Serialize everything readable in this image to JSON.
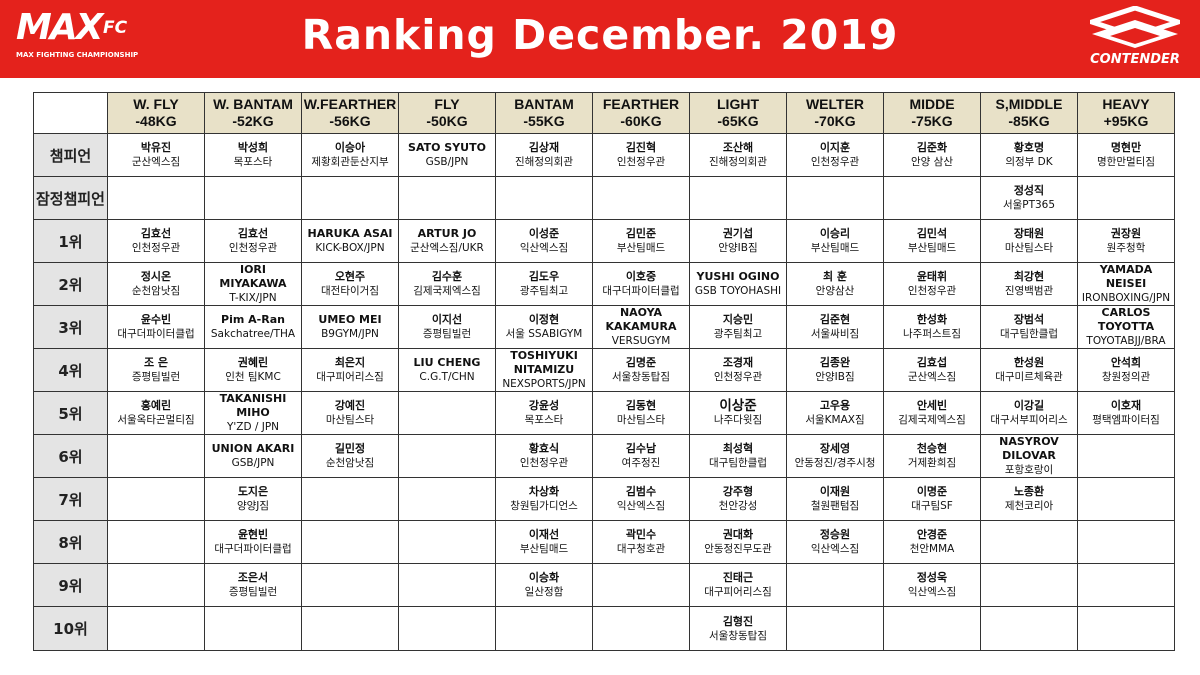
{
  "header": {
    "logo_main": "MAX",
    "logo_fc": "FC",
    "logo_sub": "MAX FIGHTING CHAMPIONSHIP",
    "title": "Ranking  December. 2019",
    "sponsor": "CONTENDER"
  },
  "divisions": [
    {
      "name": "W. FLY",
      "weight": "-48KG"
    },
    {
      "name": "W. BANTAM",
      "weight": "-52KG"
    },
    {
      "name": "W.FEARTHER",
      "weight": "-56KG"
    },
    {
      "name": "FLY",
      "weight": "-50KG"
    },
    {
      "name": "BANTAM",
      "weight": "-55KG"
    },
    {
      "name": "FEARTHER",
      "weight": "-60KG"
    },
    {
      "name": "LIGHT",
      "weight": "-65KG"
    },
    {
      "name": "WELTER",
      "weight": "-70KG"
    },
    {
      "name": "MIDDE",
      "weight": "-75KG"
    },
    {
      "name": "S,MIDDLE",
      "weight": "-85KG"
    },
    {
      "name": "HEAVY",
      "weight": "+95KG"
    }
  ],
  "rows": [
    {
      "label": "챔피언",
      "cells": [
        {
          "name": "박유진",
          "gym": "군산엑스짐"
        },
        {
          "name": "박성희",
          "gym": "목포스타"
        },
        {
          "name": "이승아",
          "gym": "제황회관둔산지부"
        },
        {
          "name": "SATO SYUTO",
          "gym": "GSB/JPN"
        },
        {
          "name": "김상재",
          "gym": "진해정의회관"
        },
        {
          "name": "김진혁",
          "gym": "인천정우관"
        },
        {
          "name": "조산해",
          "gym": "진해정의회관"
        },
        {
          "name": "이지훈",
          "gym": "인천정우관"
        },
        {
          "name": "김준화",
          "gym": "안양 삼산"
        },
        {
          "name": "황호명",
          "gym": "의정부 DK"
        },
        {
          "name": "명현만",
          "gym": "명한만멀티짐"
        }
      ]
    },
    {
      "label": "잠정챔피언",
      "cells": [
        {
          "name": "",
          "gym": ""
        },
        {
          "name": "",
          "gym": ""
        },
        {
          "name": "",
          "gym": ""
        },
        {
          "name": "",
          "gym": ""
        },
        {
          "name": "",
          "gym": ""
        },
        {
          "name": "",
          "gym": ""
        },
        {
          "name": "",
          "gym": ""
        },
        {
          "name": "",
          "gym": ""
        },
        {
          "name": "",
          "gym": ""
        },
        {
          "name": "정성직",
          "gym": "서울PT365"
        },
        {
          "name": "",
          "gym": ""
        }
      ]
    },
    {
      "label": "1위",
      "cells": [
        {
          "name": "김효선",
          "gym": "인천정우관"
        },
        {
          "name": "김효선",
          "gym": "인천정우관"
        },
        {
          "name": "HARUKA ASAI",
          "gym": "KICK-BOX/JPN"
        },
        {
          "name": "ARTUR JO",
          "gym": "군산엑스짐/UKR"
        },
        {
          "name": "이성준",
          "gym": "익산엑스짐"
        },
        {
          "name": "김민준",
          "gym": "부산팀매드"
        },
        {
          "name": "권기섭",
          "gym": "안양IB짐"
        },
        {
          "name": "이승리",
          "gym": "부산팀매드"
        },
        {
          "name": "김민석",
          "gym": "부산팀매드"
        },
        {
          "name": "장태원",
          "gym": "마산팀스타"
        },
        {
          "name": "권장원",
          "gym": "원주청학"
        }
      ]
    },
    {
      "label": "2위",
      "cells": [
        {
          "name": "정시온",
          "gym": "순천암낫짐"
        },
        {
          "name": "IORI\nMIYAKAWA",
          "gym": "T-KIX/JPN"
        },
        {
          "name": "오현주",
          "gym": "대전타이거짐"
        },
        {
          "name": "김수훈",
          "gym": "김제국제엑스짐"
        },
        {
          "name": "김도우",
          "gym": "광주팀최고"
        },
        {
          "name": "이호중",
          "gym": "대구더파이터클럽"
        },
        {
          "name": "YUSHI OGINO",
          "gym": "GSB TOYOHASHI"
        },
        {
          "name": "최 훈",
          "gym": "안양삼산"
        },
        {
          "name": "윤태휘",
          "gym": "인천정우관"
        },
        {
          "name": "최강현",
          "gym": "진영백범관"
        },
        {
          "name": "YAMADA\nNEISEI",
          "gym": "IRONBOXING/JPN"
        }
      ]
    },
    {
      "label": "3위",
      "cells": [
        {
          "name": "윤수빈",
          "gym": "대구더파이터클럽"
        },
        {
          "name": "Pim A-Ran",
          "gym": "Sakchatree/THA"
        },
        {
          "name": "UMEO MEI",
          "gym": "B9GYM/JPN"
        },
        {
          "name": "이지선",
          "gym": "증평팀빌런"
        },
        {
          "name": "이정현",
          "gym": "서울 SSABIGYM"
        },
        {
          "name": "NAOYA\nKAKAMURA",
          "gym": "VERSUGYM"
        },
        {
          "name": "지승민",
          "gym": "광주팀최고"
        },
        {
          "name": "김준현",
          "gym": "서울싸비짐"
        },
        {
          "name": "한성화",
          "gym": "나주퍼스트짐"
        },
        {
          "name": "장범석",
          "gym": "대구팀한클럽"
        },
        {
          "name": "CARLOS\nTOYOTTA",
          "gym": "TOYOTABJJ/BRA"
        }
      ]
    },
    {
      "label": "4위",
      "cells": [
        {
          "name": "조 은",
          "gym": "증평팀빌런"
        },
        {
          "name": "권혜린",
          "gym": "인천 팀KMC"
        },
        {
          "name": "최은지",
          "gym": "대구피어리스짐"
        },
        {
          "name": "LIU CHENG",
          "gym": "C.G.T/CHN"
        },
        {
          "name": "TOSHIYUKI\nNITAMIZU",
          "gym": "NEXSPORTS/JPN"
        },
        {
          "name": "김명준",
          "gym": "서울창동탑짐"
        },
        {
          "name": "조경재",
          "gym": "인천정우관"
        },
        {
          "name": "김종완",
          "gym": "안양IB짐"
        },
        {
          "name": "김효섭",
          "gym": "군산엑스짐"
        },
        {
          "name": "한성원",
          "gym": "대구미르체육관"
        },
        {
          "name": "안석희",
          "gym": "창원정의관"
        }
      ]
    },
    {
      "label": "5위",
      "cells": [
        {
          "name": "홍예린",
          "gym": "서울옥타곤멀티짐"
        },
        {
          "name": "TAKANISHI\nMIHO",
          "gym": "Y'ZD / JPN"
        },
        {
          "name": "강예진",
          "gym": "마산팀스타"
        },
        {
          "name": "",
          "gym": ""
        },
        {
          "name": "강윤성",
          "gym": "목포스타"
        },
        {
          "name": "김동현",
          "gym": "마산팀스타"
        },
        {
          "name": "이상준",
          "gym": "나주다윗짐"
        },
        {
          "name": "고우용",
          "gym": "서울KMAX짐"
        },
        {
          "name": "안세빈",
          "gym": "김제국제엑스짐"
        },
        {
          "name": "이강길",
          "gym": "대구서부피어리스"
        },
        {
          "name": "이호재",
          "gym": "평택엠파이터짐"
        }
      ]
    },
    {
      "label": "6위",
      "cells": [
        {
          "name": "",
          "gym": ""
        },
        {
          "name": "UNION AKARI",
          "gym": "GSB/JPN"
        },
        {
          "name": "길민정",
          "gym": "순천암낫짐"
        },
        {
          "name": "",
          "gym": ""
        },
        {
          "name": "황효식",
          "gym": "인천정우관"
        },
        {
          "name": "김수남",
          "gym": "여주정진"
        },
        {
          "name": "최성혁",
          "gym": "대구팀한클럽"
        },
        {
          "name": "장세영",
          "gym": "안동정진/경주시청"
        },
        {
          "name": "천승현",
          "gym": "거제환희짐"
        },
        {
          "name": "NASYROV\nDILOVAR",
          "gym": "포항호랑이"
        },
        {
          "name": "",
          "gym": ""
        }
      ]
    },
    {
      "label": "7위",
      "cells": [
        {
          "name": "",
          "gym": ""
        },
        {
          "name": "도지은",
          "gym": "양양J짐"
        },
        {
          "name": "",
          "gym": ""
        },
        {
          "name": "",
          "gym": ""
        },
        {
          "name": "차상화",
          "gym": "창원팀가디언스"
        },
        {
          "name": "김범수",
          "gym": "익산엑스짐"
        },
        {
          "name": "강주형",
          "gym": "천안강성"
        },
        {
          "name": "이재원",
          "gym": "철원팬텀짐"
        },
        {
          "name": "이명준",
          "gym": "대구팀SF"
        },
        {
          "name": "노종환",
          "gym": "제천코리아"
        },
        {
          "name": "",
          "gym": ""
        }
      ]
    },
    {
      "label": "8위",
      "cells": [
        {
          "name": "",
          "gym": ""
        },
        {
          "name": "윤현빈",
          "gym": "대구더파이터클럽"
        },
        {
          "name": "",
          "gym": ""
        },
        {
          "name": "",
          "gym": ""
        },
        {
          "name": "이재선",
          "gym": "부산팀매드"
        },
        {
          "name": "곽민수",
          "gym": "대구청호관"
        },
        {
          "name": "권대화",
          "gym": "안동정진무도관"
        },
        {
          "name": "정승원",
          "gym": "익산엑스짐"
        },
        {
          "name": "안경준",
          "gym": "천안MMA"
        },
        {
          "name": "",
          "gym": ""
        },
        {
          "name": "",
          "gym": ""
        }
      ]
    },
    {
      "label": "9위",
      "cells": [
        {
          "name": "",
          "gym": ""
        },
        {
          "name": "조은서",
          "gym": "증평팀빌런"
        },
        {
          "name": "",
          "gym": ""
        },
        {
          "name": "",
          "gym": ""
        },
        {
          "name": "이승화",
          "gym": "일산정함"
        },
        {
          "name": "",
          "gym": ""
        },
        {
          "name": "진태근",
          "gym": "대구피어리스짐"
        },
        {
          "name": "",
          "gym": ""
        },
        {
          "name": "정성욱",
          "gym": "익산엑스짐"
        },
        {
          "name": "",
          "gym": ""
        },
        {
          "name": "",
          "gym": ""
        }
      ]
    },
    {
      "label": "10위",
      "cells": [
        {
          "name": "",
          "gym": ""
        },
        {
          "name": "",
          "gym": ""
        },
        {
          "name": "",
          "gym": ""
        },
        {
          "name": "",
          "gym": ""
        },
        {
          "name": "",
          "gym": ""
        },
        {
          "name": "",
          "gym": ""
        },
        {
          "name": "김형진",
          "gym": "서울창동탑짐"
        },
        {
          "name": "",
          "gym": ""
        },
        {
          "name": "",
          "gym": ""
        },
        {
          "name": "",
          "gym": ""
        },
        {
          "name": "",
          "gym": ""
        }
      ]
    }
  ]
}
